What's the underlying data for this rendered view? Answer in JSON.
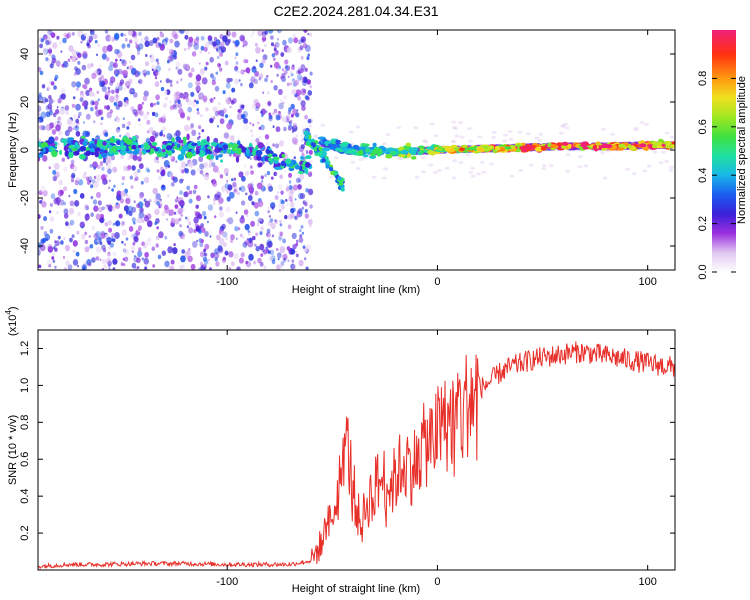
{
  "title": "C2E2.2024.281.04.34.E31",
  "chart_data": [
    {
      "type": "heatmap",
      "title": "C2E2.2024.281.04.34.E31",
      "xlabel": "Height of straight line (km)",
      "ylabel": "Frequency (Hz)",
      "xlim": [
        -190,
        113
      ],
      "ylim": [
        -50,
        50
      ],
      "xticks": [
        -100,
        0,
        100
      ],
      "yticks": [
        -40,
        -20,
        0,
        20,
        40
      ],
      "colorbar": {
        "label": "Normalized spectral amplitude",
        "range": [
          0,
          1
        ],
        "ticks": [
          0.0,
          0.2,
          0.4,
          0.6,
          0.8
        ]
      },
      "features": [
        {
          "name": "noise_scatter",
          "x_range": [
            -190,
            -60
          ],
          "freq_range": [
            -50,
            50
          ],
          "amplitude": 0.15
        },
        {
          "name": "doppler_line",
          "x": [
            -190,
            -150,
            -120,
            -90,
            -70,
            -60
          ],
          "freq": [
            1,
            1.5,
            1,
            0,
            -6,
            -6
          ],
          "amplitude": 0.35
        },
        {
          "name": "descending_branch",
          "x": [
            -63,
            -55,
            -50,
            -45
          ],
          "freq": [
            6,
            -2,
            -8,
            -15
          ],
          "amplitude": 0.4
        },
        {
          "name": "signal_line",
          "x": [
            -55,
            -40,
            -20,
            0,
            20,
            40,
            60,
            80,
            100,
            113
          ],
          "freq": [
            3,
            0,
            -1,
            0,
            0.5,
            1,
            1.5,
            1.5,
            2,
            2
          ],
          "amplitude": [
            0.45,
            0.5,
            0.6,
            0.75,
            0.85,
            0.95,
            1.0,
            1.0,
            1.0,
            1.0
          ]
        }
      ]
    },
    {
      "type": "line",
      "xlabel": "Height of straight line (km)",
      "ylabel": "SNR (10 * v/v)",
      "yscale_label": "(x10",
      "yscale_exp": "4",
      "yscale_close": ")",
      "xlim": [
        -190,
        113
      ],
      "ylim": [
        0,
        1.3
      ],
      "xticks": [
        -100,
        0,
        100
      ],
      "yticks": [
        0.2,
        0.4,
        0.6,
        0.8,
        1.0,
        1.2
      ],
      "series": [
        {
          "color": "#e8302a",
          "x": [
            -190,
            -175,
            -160,
            -140,
            -120,
            -100,
            -80,
            -70,
            -60,
            -55,
            -50,
            -46,
            -44,
            -42,
            -40,
            -38,
            -36,
            -34,
            -30,
            -26,
            -22,
            -18,
            -15,
            -12,
            -8,
            -4,
            0,
            5,
            10,
            15,
            20,
            25,
            30,
            35,
            40,
            45,
            50,
            55,
            60,
            65,
            70,
            75,
            80,
            85,
            90,
            95,
            100,
            105,
            110,
            113
          ],
          "y": [
            0.02,
            0.03,
            0.03,
            0.035,
            0.035,
            0.03,
            0.03,
            0.03,
            0.05,
            0.15,
            0.3,
            0.5,
            0.75,
            0.6,
            0.45,
            0.3,
            0.25,
            0.35,
            0.45,
            0.5,
            0.45,
            0.55,
            0.6,
            0.55,
            0.65,
            0.7,
            0.75,
            0.8,
            0.85,
            0.92,
            0.98,
            1.02,
            1.07,
            1.1,
            1.12,
            1.14,
            1.15,
            1.16,
            1.17,
            1.18,
            1.18,
            1.17,
            1.16,
            1.15,
            1.14,
            1.13,
            1.12,
            1.11,
            1.1,
            1.1
          ]
        }
      ]
    }
  ]
}
